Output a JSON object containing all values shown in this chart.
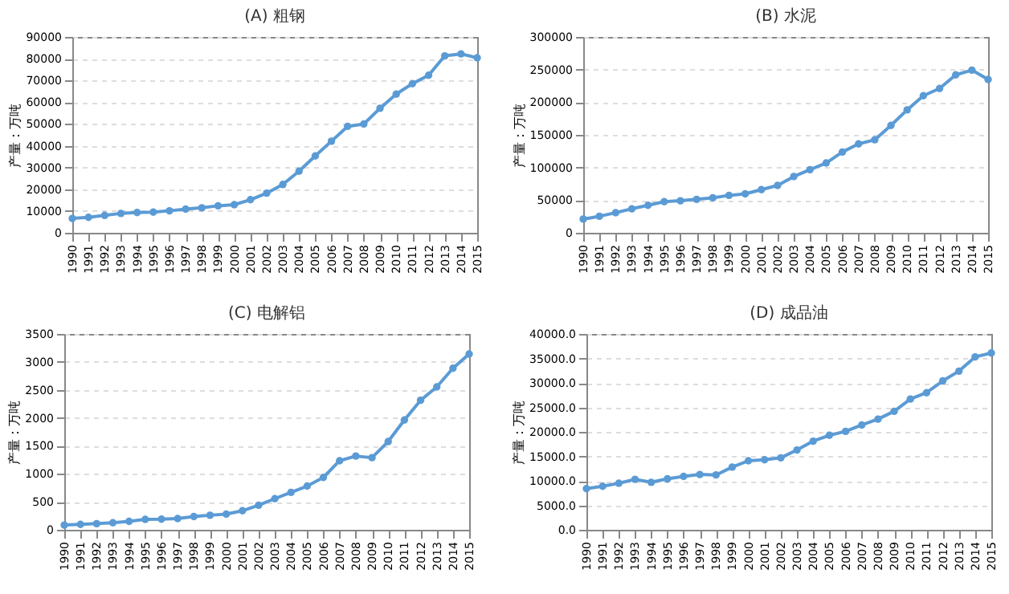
{
  "chart_data": [
    {
      "type": "line",
      "title": "(A) 粗钢",
      "ylabel": "产量：万吨",
      "categories": [
        "1990",
        "1991",
        "1992",
        "1993",
        "1994",
        "1995",
        "1996",
        "1997",
        "1998",
        "1999",
        "2000",
        "2001",
        "2002",
        "2003",
        "2004",
        "2005",
        "2006",
        "2007",
        "2008",
        "2009",
        "2010",
        "2011",
        "2012",
        "2013",
        "2014",
        "2015"
      ],
      "series": [
        {
          "color": "#5b9bd5",
          "values": [
            6600,
            7100,
            8000,
            8900,
            9300,
            9500,
            10100,
            10900,
            11500,
            12400,
            12900,
            15200,
            18200,
            22200,
            28300,
            35300,
            42100,
            48900,
            50000,
            57200,
            63700,
            68500,
            72400,
            81300,
            82200,
            80400
          ]
        }
      ],
      "ylim": [
        0,
        90000
      ],
      "yticks": [
        0,
        10000,
        20000,
        30000,
        40000,
        50000,
        60000,
        70000,
        80000,
        90000
      ],
      "grid": "y",
      "marker": "circle",
      "legend": false
    },
    {
      "type": "line",
      "title": "(B) 水泥",
      "ylabel": "产量：万吨",
      "categories": [
        "1990",
        "1991",
        "1992",
        "1993",
        "1994",
        "1995",
        "1996",
        "1997",
        "1998",
        "1999",
        "2000",
        "2001",
        "2002",
        "2003",
        "2004",
        "2005",
        "2006",
        "2007",
        "2008",
        "2009",
        "2010",
        "2011",
        "2012",
        "2013",
        "2014",
        "2015"
      ],
      "series": [
        {
          "color": "#5b9bd5",
          "values": [
            21000,
            25300,
            30800,
            36800,
            42100,
            47600,
            49100,
            51200,
            53600,
            57300,
            59700,
            66100,
            72500,
            86200,
            96700,
            106900,
            123700,
            136100,
            142400,
            164400,
            188200,
            209900,
            221000,
            241900,
            249200,
            234800
          ]
        }
      ],
      "ylim": [
        0,
        300000
      ],
      "yticks": [
        0,
        50000,
        100000,
        150000,
        200000,
        250000,
        300000
      ],
      "grid": "y",
      "marker": "circle",
      "legend": false
    },
    {
      "type": "line",
      "title": "(C) 电解铝",
      "ylabel": "产量：万吨",
      "categories": [
        "1990",
        "1991",
        "1992",
        "1993",
        "1994",
        "1995",
        "1996",
        "1997",
        "1998",
        "1999",
        "2000",
        "2001",
        "2002",
        "2003",
        "2004",
        "2005",
        "2006",
        "2007",
        "2008",
        "2009",
        "2010",
        "2011",
        "2012",
        "2013",
        "2014",
        "2015"
      ],
      "series": [
        {
          "color": "#5b9bd5",
          "values": [
            85,
            96,
            110,
            125,
            150,
            187,
            190,
            200,
            236,
            260,
            280,
            340,
            440,
            556,
            668,
            781,
            936,
            1234,
            1318,
            1289,
            1577,
            1961,
            2314,
            2553,
            2886,
            3141
          ]
        }
      ],
      "ylim": [
        0,
        3500
      ],
      "yticks": [
        0,
        500,
        1000,
        1500,
        2000,
        2500,
        3000,
        3500
      ],
      "grid": "y",
      "marker": "circle",
      "legend": false
    },
    {
      "type": "line",
      "title": "(D) 成品油",
      "ylabel": "产量：万吨",
      "categories": [
        "1990",
        "1991",
        "1992",
        "1993",
        "1994",
        "1995",
        "1996",
        "1997",
        "1998",
        "1999",
        "2000",
        "2001",
        "2002",
        "2003",
        "2004",
        "2005",
        "2006",
        "2007",
        "2008",
        "2009",
        "2010",
        "2011",
        "2012",
        "2013",
        "2014",
        "2015"
      ],
      "series": [
        {
          "color": "#5b9bd5",
          "values": [
            8400,
            8900,
            9500,
            10300,
            9700,
            10400,
            10900,
            11300,
            11200,
            12800,
            14100,
            14300,
            14700,
            16300,
            18100,
            19300,
            20100,
            21400,
            22600,
            24200,
            26700,
            28000,
            30400,
            32400,
            35300,
            36100
          ]
        }
      ],
      "ylim": [
        0,
        40000
      ],
      "yticks": [
        {
          "value": 0,
          "label": "0.0"
        },
        {
          "value": 5000,
          "label": "5000.0"
        },
        {
          "value": 10000,
          "label": "10000.0"
        },
        {
          "value": 15000,
          "label": "15000.0"
        },
        {
          "value": 20000,
          "label": "20000.0"
        },
        {
          "value": 25000,
          "label": "25000.0"
        },
        {
          "value": 30000,
          "label": "30000.0"
        },
        {
          "value": 35000,
          "label": "35000.0"
        },
        {
          "value": 40000,
          "label": "40000.0"
        }
      ],
      "grid": "y",
      "marker": "circle",
      "legend": false
    }
  ]
}
